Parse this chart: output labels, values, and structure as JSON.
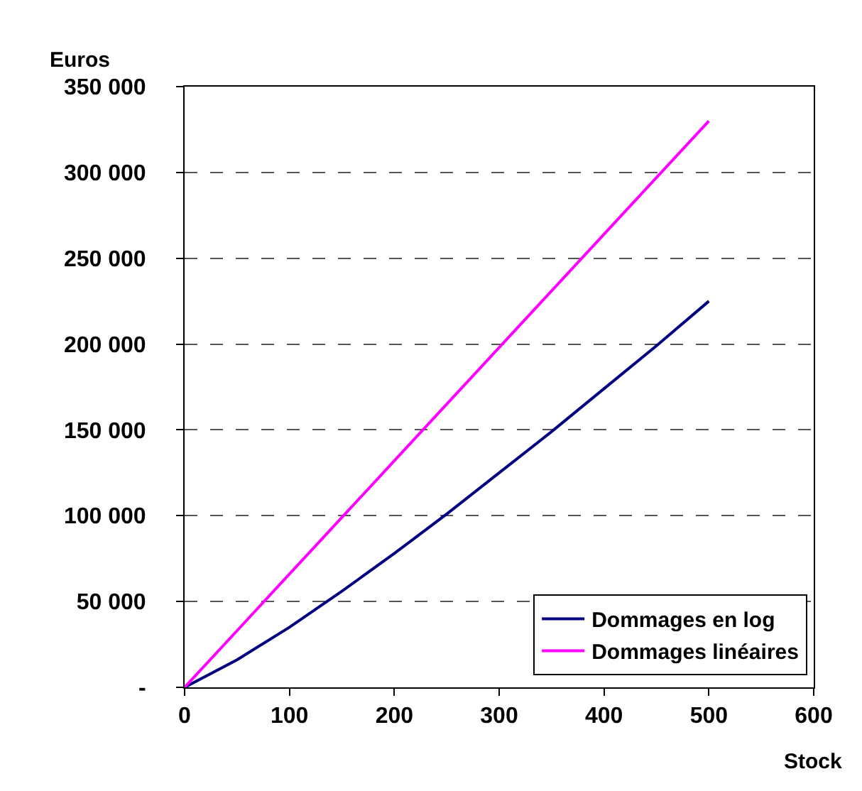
{
  "chart_data": {
    "type": "line",
    "xlabel": "Stock",
    "ylabel": "Euros",
    "x": [
      0,
      50,
      100,
      150,
      200,
      250,
      300,
      350,
      400,
      450,
      500
    ],
    "series": [
      {
        "name": "Dommages en log",
        "color": "#000080",
        "values": [
          0,
          16000,
          35000,
          56000,
          78000,
          101000,
          125000,
          149000,
          174000,
          199000,
          225000
        ]
      },
      {
        "name": "Dommages linéaires",
        "color": "#ff00ff",
        "values": [
          0,
          33000,
          66000,
          99000,
          132000,
          165000,
          198000,
          231000,
          264000,
          297000,
          330000
        ]
      }
    ],
    "xlim": [
      0,
      600
    ],
    "xticks": [
      0,
      100,
      200,
      300,
      400,
      500,
      600
    ],
    "ylim": [
      0,
      350000
    ],
    "yticks": [
      {
        "value": 0,
        "label": "-"
      },
      {
        "value": 50000,
        "label": "50 000"
      },
      {
        "value": 100000,
        "label": "100 000"
      },
      {
        "value": 150000,
        "label": "150 000"
      },
      {
        "value": 200000,
        "label": "200 000"
      },
      {
        "value": 250000,
        "label": "250 000"
      },
      {
        "value": 300000,
        "label": "300 000"
      },
      {
        "value": 350000,
        "label": "350 000"
      }
    ],
    "grid": "y",
    "legend": "bottom right",
    "line_style": "solid",
    "marker": "none"
  }
}
